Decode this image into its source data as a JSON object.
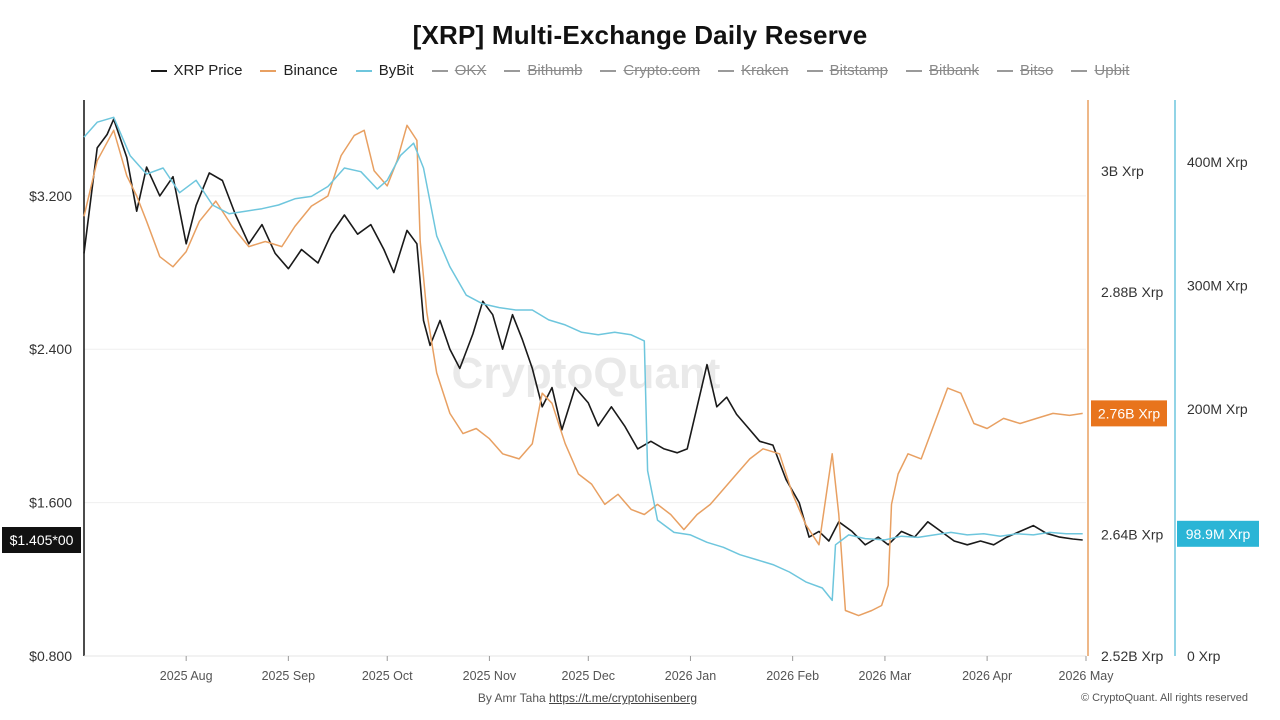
{
  "title": "[XRP] Multi-Exchange Daily Reserve",
  "legend": [
    {
      "label": "XRP Price",
      "color": "#1a1a1a",
      "active": true
    },
    {
      "label": "Binance",
      "color": "#e8a062",
      "active": true
    },
    {
      "label": "ByBit",
      "color": "#6ec6dd",
      "active": true
    },
    {
      "label": "OKX",
      "color": "#9a9a9a",
      "active": false
    },
    {
      "label": "Bithumb",
      "color": "#9a9a9a",
      "active": false
    },
    {
      "label": "Crypto.com",
      "color": "#9a9a9a",
      "active": false
    },
    {
      "label": "Kraken",
      "color": "#9a9a9a",
      "active": false
    },
    {
      "label": "Bitstamp",
      "color": "#9a9a9a",
      "active": false
    },
    {
      "label": "Bitbank",
      "color": "#9a9a9a",
      "active": false
    },
    {
      "label": "Bitso",
      "color": "#9a9a9a",
      "active": false
    },
    {
      "label": "Upbit",
      "color": "#9a9a9a",
      "active": false
    }
  ],
  "watermark": "CryptoQuant",
  "footer": {
    "credit_prefix": "By Amr Taha",
    "credit_link": "https://t.me/cryptohisenberg",
    "copyright": "© CryptoQuant. All rights reserved"
  },
  "chart_data": {
    "type": "line",
    "x_axis": {
      "start": "2025-07-01",
      "end": "2026-05-01",
      "tick_labels": [
        "2025 Aug",
        "2025 Sep",
        "2025 Oct",
        "2025 Nov",
        "2025 Dec",
        "2026 Jan",
        "2026 Feb",
        "2026 Mar",
        "2026 Apr",
        "2026 May"
      ]
    },
    "y_axes": [
      {
        "id": "price",
        "side": "left",
        "range": [
          0.8,
          3.7
        ],
        "ticks": [
          0.8,
          1.6,
          2.4,
          3.2
        ],
        "tick_labels": [
          "$0.800",
          "$1.600",
          "$2.400",
          "$3.200"
        ],
        "current_value_label": "$1.405*00",
        "current_value": 1.405,
        "badge_color": "#111111"
      },
      {
        "id": "binance",
        "side": "right-inner",
        "range": [
          2.52,
          3.07
        ],
        "ticks": [
          2.52,
          2.64,
          2.88,
          3.0
        ],
        "tick_labels": [
          "2.52B Xrp",
          "2.64B Xrp",
          "2.88B Xrp",
          "3B Xrp"
        ],
        "current_value_label": "2.76B Xrp",
        "current_value": 2.76,
        "badge_color": "#e8741c",
        "line_color": "#e8a062"
      },
      {
        "id": "bybit",
        "side": "right-outer",
        "range": [
          0,
          450
        ],
        "ticks": [
          0,
          100,
          200,
          300,
          400
        ],
        "tick_labels": [
          "0 Xrp",
          "",
          "200M Xrp",
          "300M Xrp",
          "400M Xrp"
        ],
        "current_value_label": "98.9M Xrp",
        "current_value": 98.9,
        "badge_color": "#2bb5d6",
        "line_color": "#6ec6dd"
      }
    ],
    "series": [
      {
        "name": "XRP Price",
        "axis": "price",
        "color": "#1a1a1a",
        "points": [
          [
            "2025-07-01",
            2.9
          ],
          [
            "2025-07-05",
            3.45
          ],
          [
            "2025-07-08",
            3.52
          ],
          [
            "2025-07-10",
            3.6
          ],
          [
            "2025-07-14",
            3.4
          ],
          [
            "2025-07-17",
            3.12
          ],
          [
            "2025-07-20",
            3.35
          ],
          [
            "2025-07-24",
            3.2
          ],
          [
            "2025-07-28",
            3.3
          ],
          [
            "2025-08-01",
            2.95
          ],
          [
            "2025-08-04",
            3.15
          ],
          [
            "2025-08-08",
            3.32
          ],
          [
            "2025-08-12",
            3.28
          ],
          [
            "2025-08-16",
            3.1
          ],
          [
            "2025-08-20",
            2.95
          ],
          [
            "2025-08-24",
            3.05
          ],
          [
            "2025-08-28",
            2.9
          ],
          [
            "2025-09-01",
            2.82
          ],
          [
            "2025-09-05",
            2.92
          ],
          [
            "2025-09-10",
            2.85
          ],
          [
            "2025-09-14",
            3.0
          ],
          [
            "2025-09-18",
            3.1
          ],
          [
            "2025-09-22",
            3.0
          ],
          [
            "2025-09-26",
            3.05
          ],
          [
            "2025-09-30",
            2.92
          ],
          [
            "2025-10-03",
            2.8
          ],
          [
            "2025-10-07",
            3.02
          ],
          [
            "2025-10-10",
            2.95
          ],
          [
            "2025-10-12",
            2.55
          ],
          [
            "2025-10-14",
            2.42
          ],
          [
            "2025-10-17",
            2.55
          ],
          [
            "2025-10-20",
            2.4
          ],
          [
            "2025-10-23",
            2.3
          ],
          [
            "2025-10-27",
            2.48
          ],
          [
            "2025-10-30",
            2.65
          ],
          [
            "2025-11-02",
            2.58
          ],
          [
            "2025-11-05",
            2.4
          ],
          [
            "2025-11-08",
            2.58
          ],
          [
            "2025-11-11",
            2.45
          ],
          [
            "2025-11-14",
            2.3
          ],
          [
            "2025-11-17",
            2.1
          ],
          [
            "2025-11-20",
            2.2
          ],
          [
            "2025-11-23",
            1.98
          ],
          [
            "2025-11-27",
            2.2
          ],
          [
            "2025-12-01",
            2.12
          ],
          [
            "2025-12-04",
            2.0
          ],
          [
            "2025-12-08",
            2.1
          ],
          [
            "2025-12-12",
            2.0
          ],
          [
            "2025-12-16",
            1.88
          ],
          [
            "2025-12-20",
            1.92
          ],
          [
            "2025-12-24",
            1.88
          ],
          [
            "2025-12-28",
            1.86
          ],
          [
            "2025-12-31",
            1.88
          ],
          [
            "2026-01-03",
            2.1
          ],
          [
            "2026-01-06",
            2.32
          ],
          [
            "2026-01-09",
            2.1
          ],
          [
            "2026-01-12",
            2.15
          ],
          [
            "2026-01-15",
            2.06
          ],
          [
            "2026-01-18",
            2.0
          ],
          [
            "2026-01-22",
            1.92
          ],
          [
            "2026-01-26",
            1.9
          ],
          [
            "2026-01-30",
            1.72
          ],
          [
            "2026-02-03",
            1.6
          ],
          [
            "2026-02-06",
            1.42
          ],
          [
            "2026-02-09",
            1.45
          ],
          [
            "2026-02-12",
            1.4
          ],
          [
            "2026-02-15",
            1.5
          ],
          [
            "2026-02-19",
            1.45
          ],
          [
            "2026-02-23",
            1.38
          ],
          [
            "2026-02-27",
            1.42
          ],
          [
            "2026-03-02",
            1.38
          ],
          [
            "2026-03-06",
            1.45
          ],
          [
            "2026-03-10",
            1.42
          ],
          [
            "2026-03-14",
            1.5
          ],
          [
            "2026-03-18",
            1.45
          ],
          [
            "2026-03-22",
            1.4
          ],
          [
            "2026-03-26",
            1.38
          ],
          [
            "2026-03-30",
            1.4
          ],
          [
            "2026-04-03",
            1.38
          ],
          [
            "2026-04-07",
            1.42
          ],
          [
            "2026-04-11",
            1.45
          ],
          [
            "2026-04-15",
            1.48
          ],
          [
            "2026-04-19",
            1.44
          ],
          [
            "2026-04-23",
            1.42
          ],
          [
            "2026-04-27",
            1.41
          ],
          [
            "2026-04-30",
            1.405
          ]
        ]
      },
      {
        "name": "Binance",
        "axis": "binance",
        "color": "#e8a062",
        "points": [
          [
            "2025-07-01",
            2.955
          ],
          [
            "2025-07-05",
            3.01
          ],
          [
            "2025-07-10",
            3.04
          ],
          [
            "2025-07-14",
            2.995
          ],
          [
            "2025-07-17",
            2.975
          ],
          [
            "2025-07-20",
            2.95
          ],
          [
            "2025-07-24",
            2.915
          ],
          [
            "2025-07-28",
            2.905
          ],
          [
            "2025-08-01",
            2.92
          ],
          [
            "2025-08-05",
            2.95
          ],
          [
            "2025-08-10",
            2.97
          ],
          [
            "2025-08-15",
            2.945
          ],
          [
            "2025-08-20",
            2.925
          ],
          [
            "2025-08-25",
            2.93
          ],
          [
            "2025-08-30",
            2.925
          ],
          [
            "2025-09-03",
            2.945
          ],
          [
            "2025-09-08",
            2.965
          ],
          [
            "2025-09-13",
            2.975
          ],
          [
            "2025-09-17",
            3.015
          ],
          [
            "2025-09-21",
            3.035
          ],
          [
            "2025-09-24",
            3.04
          ],
          [
            "2025-09-27",
            3.0
          ],
          [
            "2025-10-01",
            2.985
          ],
          [
            "2025-10-04",
            3.01
          ],
          [
            "2025-10-07",
            3.045
          ],
          [
            "2025-10-10",
            3.03
          ],
          [
            "2025-10-11",
            2.93
          ],
          [
            "2025-10-13",
            2.86
          ],
          [
            "2025-10-16",
            2.8
          ],
          [
            "2025-10-20",
            2.76
          ],
          [
            "2025-10-24",
            2.74
          ],
          [
            "2025-10-28",
            2.745
          ],
          [
            "2025-11-01",
            2.735
          ],
          [
            "2025-11-05",
            2.72
          ],
          [
            "2025-11-10",
            2.715
          ],
          [
            "2025-11-14",
            2.73
          ],
          [
            "2025-11-17",
            2.78
          ],
          [
            "2025-11-20",
            2.77
          ],
          [
            "2025-11-24",
            2.73
          ],
          [
            "2025-11-28",
            2.7
          ],
          [
            "2025-12-02",
            2.69
          ],
          [
            "2025-12-06",
            2.67
          ],
          [
            "2025-12-10",
            2.68
          ],
          [
            "2025-12-14",
            2.665
          ],
          [
            "2025-12-18",
            2.66
          ],
          [
            "2025-12-22",
            2.67
          ],
          [
            "2025-12-26",
            2.66
          ],
          [
            "2025-12-30",
            2.645
          ],
          [
            "2026-01-03",
            2.66
          ],
          [
            "2026-01-07",
            2.67
          ],
          [
            "2026-01-11",
            2.685
          ],
          [
            "2026-01-15",
            2.7
          ],
          [
            "2026-01-19",
            2.715
          ],
          [
            "2026-01-23",
            2.725
          ],
          [
            "2026-01-28",
            2.72
          ],
          [
            "2026-02-01",
            2.68
          ],
          [
            "2026-02-05",
            2.65
          ],
          [
            "2026-02-09",
            2.63
          ],
          [
            "2026-02-13",
            2.72
          ],
          [
            "2026-02-15",
            2.66
          ],
          [
            "2026-02-17",
            2.565
          ],
          [
            "2026-02-21",
            2.56
          ],
          [
            "2026-02-25",
            2.565
          ],
          [
            "2026-02-28",
            2.57
          ],
          [
            "2026-03-02",
            2.59
          ],
          [
            "2026-03-03",
            2.67
          ],
          [
            "2026-03-05",
            2.7
          ],
          [
            "2026-03-08",
            2.72
          ],
          [
            "2026-03-12",
            2.715
          ],
          [
            "2026-03-16",
            2.75
          ],
          [
            "2026-03-20",
            2.785
          ],
          [
            "2026-03-24",
            2.78
          ],
          [
            "2026-03-28",
            2.75
          ],
          [
            "2026-04-01",
            2.745
          ],
          [
            "2026-04-06",
            2.755
          ],
          [
            "2026-04-11",
            2.75
          ],
          [
            "2026-04-16",
            2.755
          ],
          [
            "2026-04-21",
            2.76
          ],
          [
            "2026-04-26",
            2.758
          ],
          [
            "2026-04-30",
            2.76
          ]
        ]
      },
      {
        "name": "ByBit",
        "axis": "bybit",
        "color": "#6ec6dd",
        "points": [
          [
            "2025-07-01",
            420
          ],
          [
            "2025-07-05",
            432
          ],
          [
            "2025-07-10",
            436
          ],
          [
            "2025-07-15",
            405
          ],
          [
            "2025-07-20",
            390
          ],
          [
            "2025-07-25",
            395
          ],
          [
            "2025-07-30",
            375
          ],
          [
            "2025-08-04",
            385
          ],
          [
            "2025-08-09",
            365
          ],
          [
            "2025-08-14",
            358
          ],
          [
            "2025-08-19",
            360
          ],
          [
            "2025-08-24",
            362
          ],
          [
            "2025-08-29",
            365
          ],
          [
            "2025-09-03",
            370
          ],
          [
            "2025-09-08",
            372
          ],
          [
            "2025-09-13",
            380
          ],
          [
            "2025-09-18",
            395
          ],
          [
            "2025-09-23",
            392
          ],
          [
            "2025-09-28",
            378
          ],
          [
            "2025-10-01",
            385
          ],
          [
            "2025-10-05",
            405
          ],
          [
            "2025-10-09",
            415
          ],
          [
            "2025-10-12",
            395
          ],
          [
            "2025-10-16",
            340
          ],
          [
            "2025-10-20",
            315
          ],
          [
            "2025-10-25",
            292
          ],
          [
            "2025-10-30",
            285
          ],
          [
            "2025-11-04",
            282
          ],
          [
            "2025-11-09",
            280
          ],
          [
            "2025-11-14",
            280
          ],
          [
            "2025-11-19",
            272
          ],
          [
            "2025-11-24",
            268
          ],
          [
            "2025-11-29",
            262
          ],
          [
            "2025-12-04",
            260
          ],
          [
            "2025-12-09",
            262
          ],
          [
            "2025-12-14",
            260
          ],
          [
            "2025-12-18",
            255
          ],
          [
            "2025-12-19",
            150
          ],
          [
            "2025-12-22",
            110
          ],
          [
            "2025-12-27",
            100
          ],
          [
            "2026-01-01",
            98
          ],
          [
            "2026-01-06",
            92
          ],
          [
            "2026-01-11",
            88
          ],
          [
            "2026-01-16",
            82
          ],
          [
            "2026-01-21",
            78
          ],
          [
            "2026-01-26",
            74
          ],
          [
            "2026-01-31",
            68
          ],
          [
            "2026-02-05",
            60
          ],
          [
            "2026-02-10",
            55
          ],
          [
            "2026-02-13",
            45
          ],
          [
            "2026-02-14",
            90
          ],
          [
            "2026-02-18",
            98
          ],
          [
            "2026-02-23",
            95
          ],
          [
            "2026-03-01",
            94
          ],
          [
            "2026-03-06",
            97
          ],
          [
            "2026-03-11",
            96
          ],
          [
            "2026-03-16",
            98
          ],
          [
            "2026-03-21",
            100
          ],
          [
            "2026-03-26",
            98
          ],
          [
            "2026-03-31",
            99
          ],
          [
            "2026-04-05",
            97
          ],
          [
            "2026-04-10",
            99
          ],
          [
            "2026-04-15",
            98
          ],
          [
            "2026-04-20",
            100
          ],
          [
            "2026-04-25",
            99
          ],
          [
            "2026-04-30",
            98.9
          ]
        ]
      }
    ]
  }
}
